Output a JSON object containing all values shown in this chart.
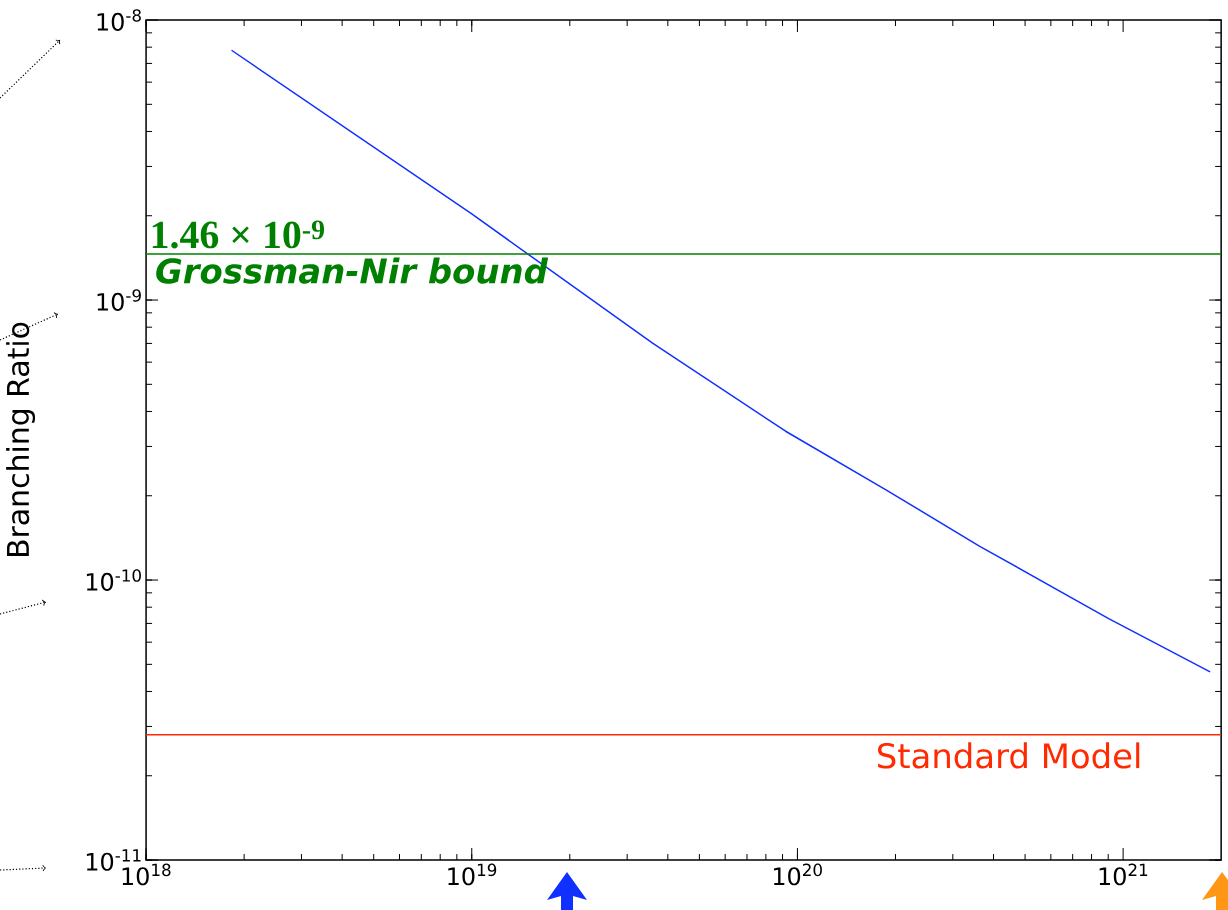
{
  "chart_data": {
    "type": "line",
    "ylabel": "Branching Ratio",
    "log": "xy",
    "xlim": [
      1e+18,
      2e+21
    ],
    "ylim": [
      1e-11,
      1e-08
    ],
    "xticks": [
      {
        "value": 1e+18,
        "label": "10$^{18}$"
      },
      {
        "value": 1e+19,
        "label": "10$^{19}$"
      },
      {
        "value": 1e+20,
        "label": "10$^{20}$"
      },
      {
        "value": 1e+21,
        "label": "10$^{21}$"
      }
    ],
    "yticks": [
      {
        "value": 1e-11,
        "label": "10$^{-11}$"
      },
      {
        "value": 1e-10,
        "label": "10$^{-10}$"
      },
      {
        "value": 1e-09,
        "label": "10$^{-9}$"
      },
      {
        "value": 1e-08,
        "label": "10$^{-8}$"
      }
    ],
    "series": [
      {
        "color": "#1030ff",
        "x": [
          1.83e+18,
          1e+19,
          3.6e+19,
          9.2e+19,
          1.87e+20,
          3.63e+20,
          9e+20,
          1.85e+21
        ],
        "values": [
          7.8e-09,
          2.03e-09,
          7e-10,
          3.4e-10,
          2.1e-10,
          1.32e-10,
          7.3e-11,
          4.7e-11
        ]
      }
    ],
    "ref_lines": [
      {
        "axis": "y",
        "value": 1.46e-09,
        "label": "Grossman-Nir bound",
        "color": "#008000"
      },
      {
        "axis": "y",
        "value": 2.8e-11,
        "label": "Standard Model",
        "color": "#ff2a00"
      }
    ],
    "annotations": [
      "1.46 × 10$^{-9}$"
    ],
    "grid": false,
    "marker": "none",
    "line_style": "solid"
  }
}
